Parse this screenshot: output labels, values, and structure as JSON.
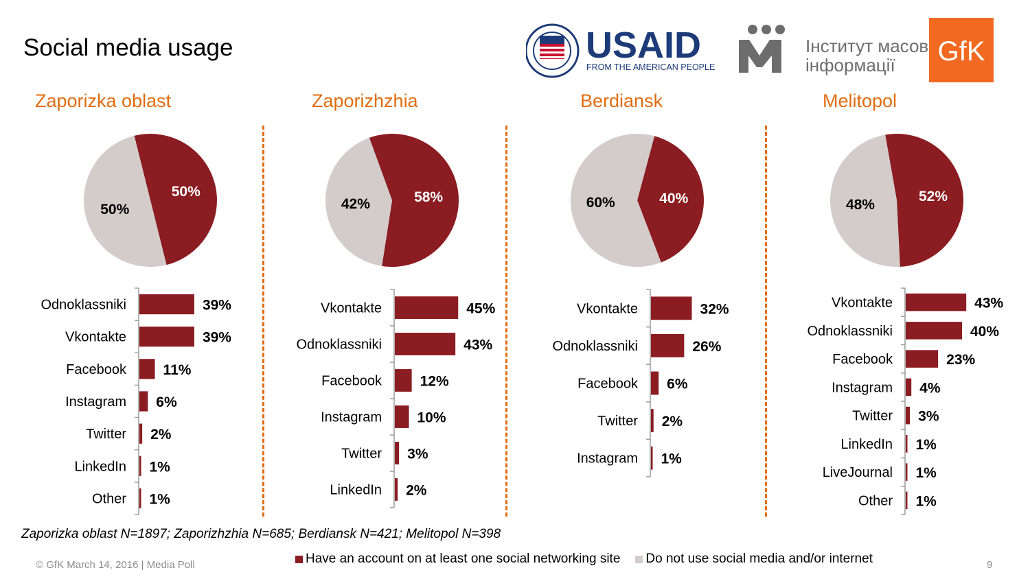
{
  "page": {
    "title": "Social media usage",
    "note": "Zaporizka oblast N=1897; Zaporizhzhia N=685; Berdiansk N=421; Melitopol N=398",
    "footer": "© GfK March 14, 2016 | Media Poll",
    "page_number": "9"
  },
  "logos": {
    "usaid_text": "USAID",
    "usaid_tagline": "FROM THE AMERICAN PEOPLE",
    "imi_text_line1": "Інститут масової",
    "imi_text_line2": "інформації",
    "gfk_text": "GfK"
  },
  "colors": {
    "accent_orange": "#e06c0e",
    "series_account": "#8b1c22",
    "series_no_use": "#d3cccb"
  },
  "legend": {
    "account_label": "Have an account on at least one social networking site",
    "no_use_label": "Do not use social media and/or internet"
  },
  "chart_data": [
    {
      "type": "pie",
      "title": "Zaporizka oblast",
      "series": [
        {
          "name": "Have an account on at least one social networking site",
          "value": 50,
          "label": "50%"
        },
        {
          "name": "Do not use social media and/or internet",
          "value": 50,
          "label": "50%"
        }
      ]
    },
    {
      "type": "bar",
      "orientation": "horizontal",
      "region": "Zaporizka oblast",
      "categories": [
        "Odnoklassniki",
        "Vkontakte",
        "Facebook",
        "Instagram",
        "Twitter",
        "LinkedIn",
        "Other"
      ],
      "values": [
        39,
        39,
        11,
        6,
        2,
        1,
        1
      ],
      "labels": [
        "39%",
        "39%",
        "11%",
        "6%",
        "2%",
        "1%",
        "1%"
      ]
    },
    {
      "type": "pie",
      "title": "Zaporizhzhia",
      "series": [
        {
          "name": "Have an account on at least one social networking site",
          "value": 58,
          "label": "58%"
        },
        {
          "name": "Do not use social media and/or internet",
          "value": 42,
          "label": "42%"
        }
      ]
    },
    {
      "type": "bar",
      "orientation": "horizontal",
      "region": "Zaporizhzhia",
      "categories": [
        "Vkontakte",
        "Odnoklassniki",
        "Facebook",
        "Instagram",
        "Twitter",
        "LinkedIn"
      ],
      "values": [
        45,
        43,
        12,
        10,
        3,
        2
      ],
      "labels": [
        "45%",
        "43%",
        "12%",
        "10%",
        "3%",
        "2%"
      ]
    },
    {
      "type": "pie",
      "title": "Berdiansk",
      "series": [
        {
          "name": "Have an account on at least one social networking site",
          "value": 40,
          "label": "40%"
        },
        {
          "name": "Do not use social media and/or internet",
          "value": 60,
          "label": "60%"
        }
      ]
    },
    {
      "type": "bar",
      "orientation": "horizontal",
      "region": "Berdiansk",
      "categories": [
        "Vkontakte",
        "Odnoklassniki",
        "Facebook",
        "Twitter",
        "Instagram"
      ],
      "values": [
        32,
        26,
        6,
        2,
        1
      ],
      "labels": [
        "32%",
        "26%",
        "6%",
        "2%",
        "1%"
      ]
    },
    {
      "type": "pie",
      "title": "Melitopol",
      "series": [
        {
          "name": "Have an account on at least one social networking site",
          "value": 52,
          "label": "52%"
        },
        {
          "name": "Do not use social media and/or internet",
          "value": 48,
          "label": "48%"
        }
      ]
    },
    {
      "type": "bar",
      "orientation": "horizontal",
      "region": "Melitopol",
      "categories": [
        "Vkontakte",
        "Odnoklassniki",
        "Facebook",
        "Instagram",
        "Twitter",
        "LinkedIn",
        "LiveJournal",
        "Other"
      ],
      "values": [
        43,
        40,
        23,
        4,
        3,
        1,
        1,
        1
      ],
      "labels": [
        "43%",
        "40%",
        "23%",
        "4%",
        "3%",
        "1%",
        "1%",
        "1%"
      ]
    }
  ]
}
